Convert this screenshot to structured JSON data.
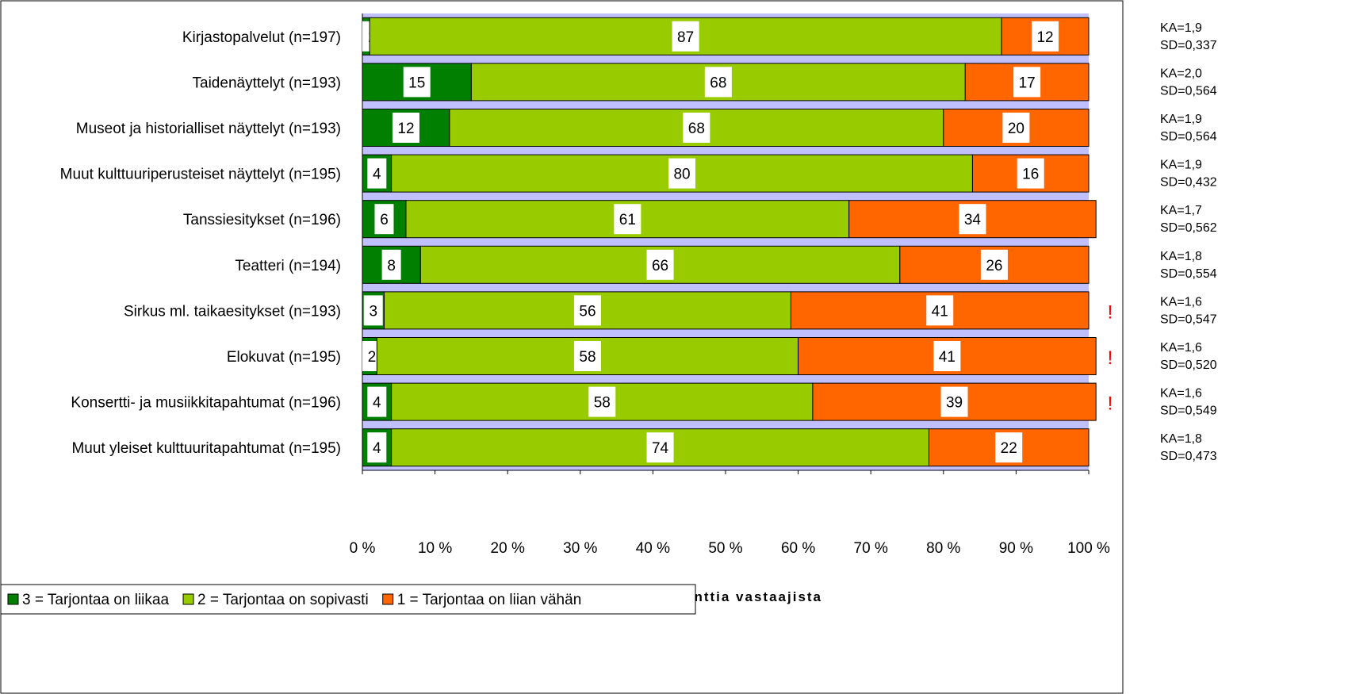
{
  "colors": {
    "level3": "#007f00",
    "level2": "#99cc00",
    "level1": "#ff6600",
    "stripe": "#c0c0ff",
    "warning": "#ff0000"
  },
  "chart_data": {
    "type": "bar",
    "orientation": "horizontal",
    "stacked": "percent",
    "categories": [
      "Kirjastopalvelut (n=197)",
      "Taidenäyttelyt (n=193)",
      "Museot ja historialliset näyttelyt (n=193)",
      "Muut kulttuuriperusteiset näyttelyt (n=195)",
      "Tanssiesitykset (n=196)",
      "Teatteri (n=194)",
      "Sirkus ml. taikaesitykset (n=193)",
      "Elokuvat (n=195)",
      "Konsertti- ja musiikkitapahtumat (n=196)",
      "Muut yleiset kulttuuritapahtumat (n=195)"
    ],
    "series": [
      {
        "name": "3 = Tarjontaa on liikaa",
        "color_key": "level3",
        "values": [
          1,
          15,
          12,
          4,
          6,
          8,
          3,
          2,
          4,
          4
        ]
      },
      {
        "name": "2 = Tarjontaa on sopivasti",
        "color_key": "level2",
        "values": [
          87,
          68,
          68,
          80,
          61,
          66,
          56,
          58,
          58,
          74
        ]
      },
      {
        "name": "1 = Tarjontaa on liian vähän",
        "color_key": "level1",
        "values": [
          12,
          17,
          20,
          16,
          34,
          26,
          41,
          41,
          39,
          22
        ]
      }
    ],
    "x_ticks": [
      "0 %",
      "10 %",
      "20 %",
      "30 %",
      "40 %",
      "50 %",
      "60 %",
      "70 %",
      "80 %",
      "90 %",
      "100 %"
    ],
    "xlim": [
      0,
      100
    ],
    "xlabel": "(%) prosenttia vastaajista",
    "stats": [
      {
        "ka": "KA=1,9",
        "sd": "SD=0,337",
        "warning": false
      },
      {
        "ka": "KA=2,0",
        "sd": "SD=0,564",
        "warning": false
      },
      {
        "ka": "KA=1,9",
        "sd": "SD=0,564",
        "warning": false
      },
      {
        "ka": "KA=1,9",
        "sd": "SD=0,432",
        "warning": false
      },
      {
        "ka": "KA=1,7",
        "sd": "SD=0,562",
        "warning": false
      },
      {
        "ka": "KA=1,8",
        "sd": "SD=0,554",
        "warning": false
      },
      {
        "ka": "KA=1,6",
        "sd": "SD=0,547",
        "warning": true
      },
      {
        "ka": "KA=1,6",
        "sd": "SD=0,520",
        "warning": true
      },
      {
        "ka": "KA=1,6",
        "sd": "SD=0,549",
        "warning": true
      },
      {
        "ka": "KA=1,8",
        "sd": "SD=0,473",
        "warning": false
      }
    ],
    "warning_mark": "!",
    "legend_position": "bottom-left",
    "grid": false
  }
}
